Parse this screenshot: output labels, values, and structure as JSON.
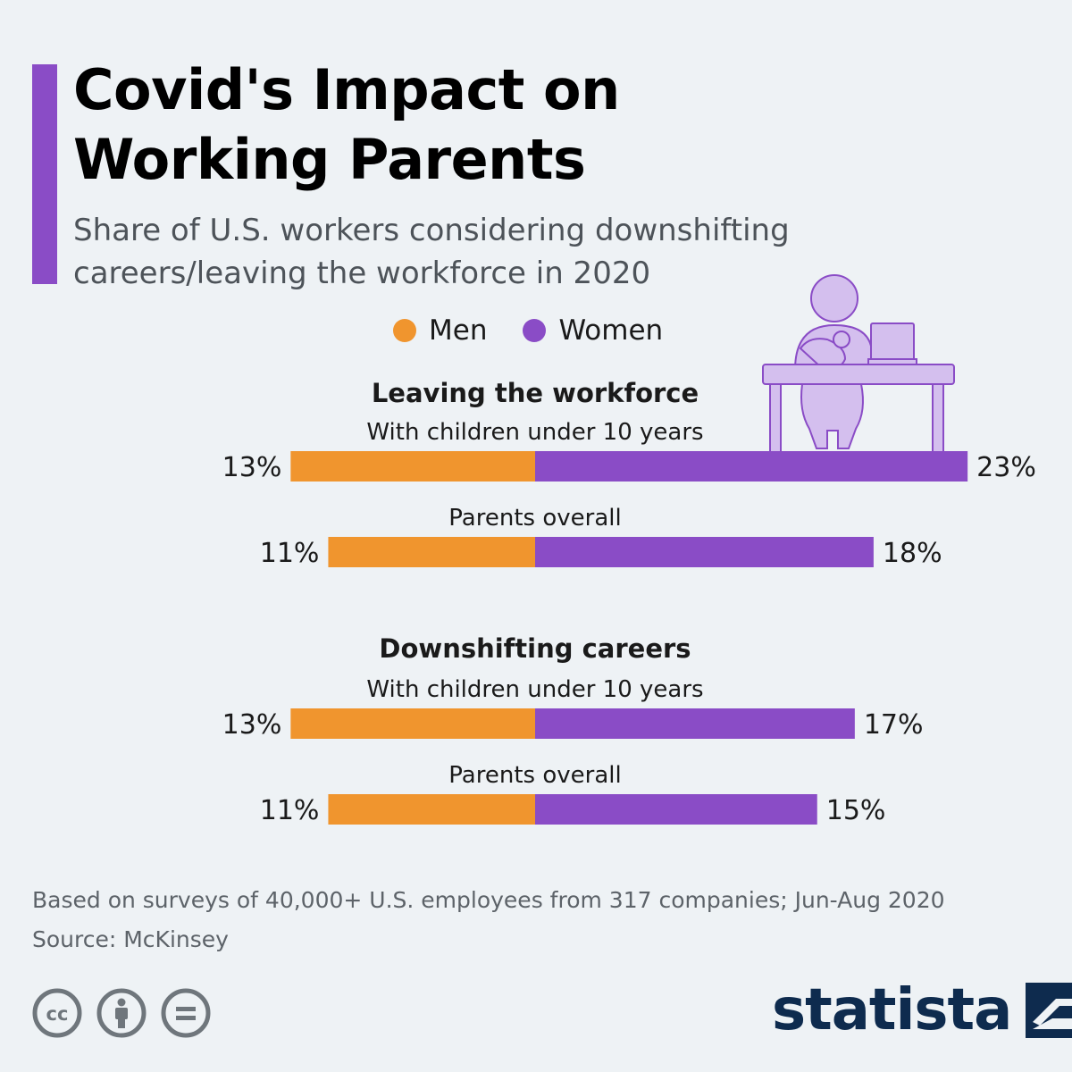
{
  "header": {
    "title": "Covid's Impact on Working Parents",
    "subtitle_line1": "Share of U.S. workers considering downshifting",
    "subtitle_line2": "careers/leaving the workforce in 2020"
  },
  "legend": [
    {
      "label": "Men",
      "color": "#f0952e"
    },
    {
      "label": "Women",
      "color": "#8a4cc6"
    }
  ],
  "chart_data": {
    "type": "bar",
    "orientation": "horizontal-diverging",
    "unit": "%",
    "groups": [
      {
        "title": "Leaving the workforce",
        "rows": [
          {
            "label": "With children under 10 years",
            "men": 13,
            "women": 23
          },
          {
            "label": "Parents overall",
            "men": 11,
            "women": 18
          }
        ]
      },
      {
        "title": "Downshifting careers",
        "rows": [
          {
            "label": "With children under 10 years",
            "men": 13,
            "women": 17
          },
          {
            "label": "Parents overall",
            "men": 11,
            "women": 15
          }
        ]
      }
    ],
    "series": [
      {
        "name": "Men",
        "color": "#f0952e"
      },
      {
        "name": "Women",
        "color": "#8a4cc6"
      }
    ]
  },
  "footer": {
    "note": "Based on surveys of 40,000+ U.S. employees from 317 companies; Jun-Aug 2020",
    "source": "Source: McKinsey",
    "license_icons": [
      "creative-commons-icon",
      "attribution-icon",
      "no-derivatives-icon"
    ],
    "brand": "statista",
    "brand_color": "#0e2b4e"
  },
  "illustration": {
    "icon": "parent-working-with-baby-icon"
  }
}
